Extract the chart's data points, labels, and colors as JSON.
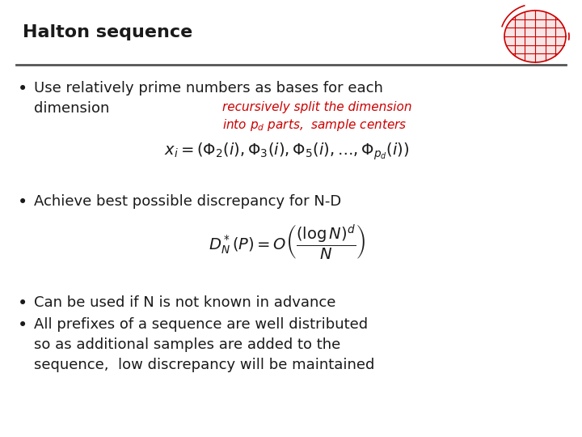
{
  "title": "Halton sequence",
  "title_color": "#1a1a1a",
  "title_fontsize": 16,
  "background_color": "#ffffff",
  "divider_color": "#555555",
  "bullet_color": "#1a1a1a",
  "bullet_fontsize": 13,
  "formula_fontsize": 13,
  "annotation_color": "#cc0000",
  "annotation_fontsize": 11,
  "bullet1_line1": "Use relatively prime numbers as bases for each",
  "bullet1_line2": "dimension",
  "annotation_line1": "recursively split the dimension",
  "annotation_line2": "into $p_d$ parts,  sample centers",
  "formula1": "$x_i = (\\Phi_2(i),\\Phi_3(i),\\Phi_5(i),\\ldots,\\Phi_{p_d}(i))$",
  "bullet2": "Achieve best possible discrepancy for N-D",
  "formula2": "$D_N^*(P) = O\\left(\\dfrac{(\\log N)^d}{N}\\right)$",
  "bullet3": "Can be used if N is not known in advance",
  "bullet4_line1": "All prefixes of a sequence are well distributed",
  "bullet4_line2": "so as additional samples are added to the",
  "bullet4_line3": "sequence,  low discrepancy will be maintained"
}
